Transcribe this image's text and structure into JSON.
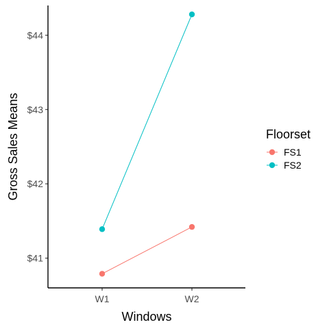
{
  "chart_data": {
    "type": "line",
    "x": [
      "W1",
      "W2"
    ],
    "xlabel": "Windows",
    "ylabel": "Gross Sales Means",
    "y_ticks": [
      41,
      42,
      43,
      44
    ],
    "y_tick_labels": [
      "$41",
      "$42",
      "$43",
      "$44"
    ],
    "ylim": [
      40.6,
      44.4
    ],
    "grid": false,
    "legend": {
      "title": "Floorset",
      "position": "right"
    },
    "series": [
      {
        "name": "FS1",
        "color": "#F8766D",
        "values": [
          40.79,
          41.42
        ]
      },
      {
        "name": "FS2",
        "color": "#00BFC4",
        "values": [
          41.39,
          44.28
        ]
      }
    ]
  }
}
